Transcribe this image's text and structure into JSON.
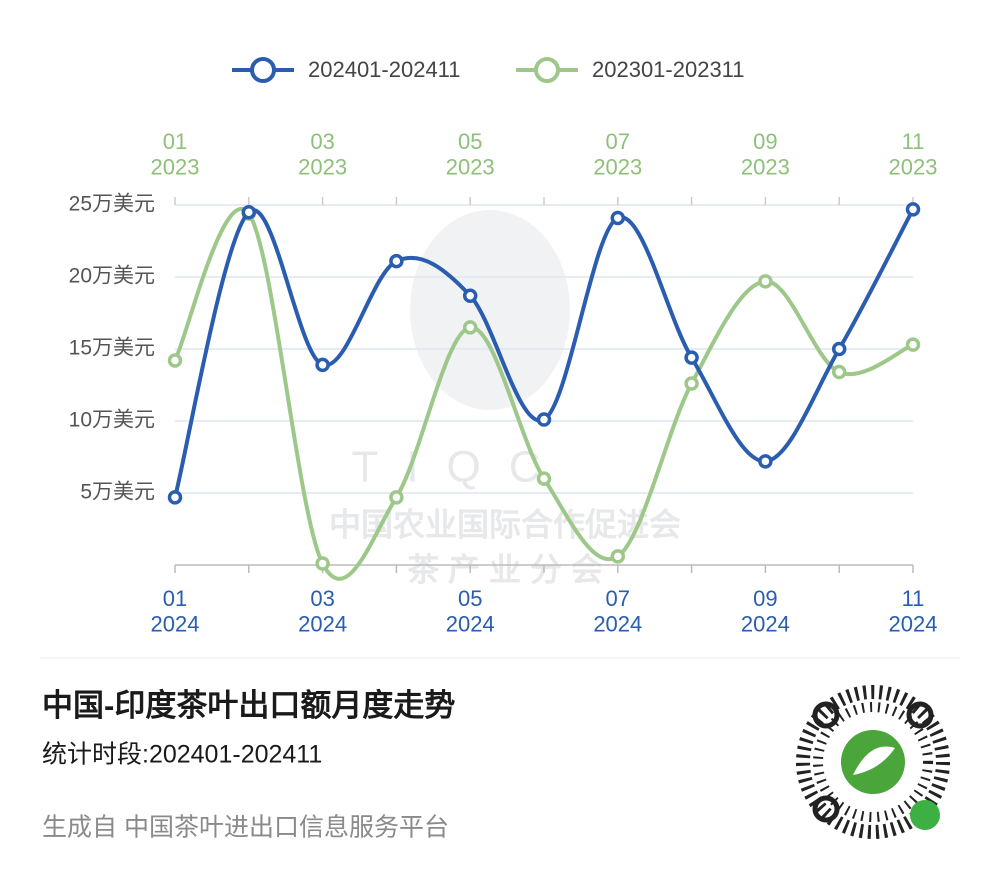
{
  "chart_data": {
    "type": "line",
    "categories": [
      "01\n2024",
      null,
      "03\n2024",
      null,
      "05\n2024",
      null,
      "07\n2024",
      null,
      "09\n2024",
      null,
      "11\n2024"
    ],
    "x2_categories": [
      "01\n2023",
      null,
      "03\n2023",
      null,
      "05\n2023",
      null,
      "07\n2023",
      null,
      "09\n2023",
      null,
      "11\n2023"
    ],
    "series": [
      {
        "name": "202401-202411",
        "color": "#2a5db0",
        "values": [
          4.7,
          24.5,
          13.9,
          21.1,
          18.7,
          10.1,
          24.1,
          14.4,
          7.2,
          15.0,
          24.7
        ]
      },
      {
        "name": "202301-202311",
        "color": "#9dc88a",
        "values": [
          14.2,
          24.4,
          0.1,
          4.7,
          16.5,
          6.0,
          0.6,
          12.6,
          19.7,
          13.4,
          15.3
        ]
      }
    ],
    "ylim": [
      0,
      25
    ],
    "yticks": [
      {
        "value": 5,
        "label": "5万美元"
      },
      {
        "value": 10,
        "label": "10万美元"
      },
      {
        "value": 15,
        "label": "15万美元"
      },
      {
        "value": 20,
        "label": "20万美元"
      },
      {
        "value": 25,
        "label": "25万美元"
      }
    ],
    "grid": true,
    "legend": "top",
    "watermark": {
      "logo": "TIQC",
      "line1": "中国农业国际合作促进会",
      "line2": "茶 产 业 分 会"
    }
  },
  "footer": {
    "title": "中国-印度茶叶出口额月度走势",
    "subtitle": "统计时段:202401-202411",
    "source": "生成自 中国茶叶进出口信息服务平台"
  }
}
